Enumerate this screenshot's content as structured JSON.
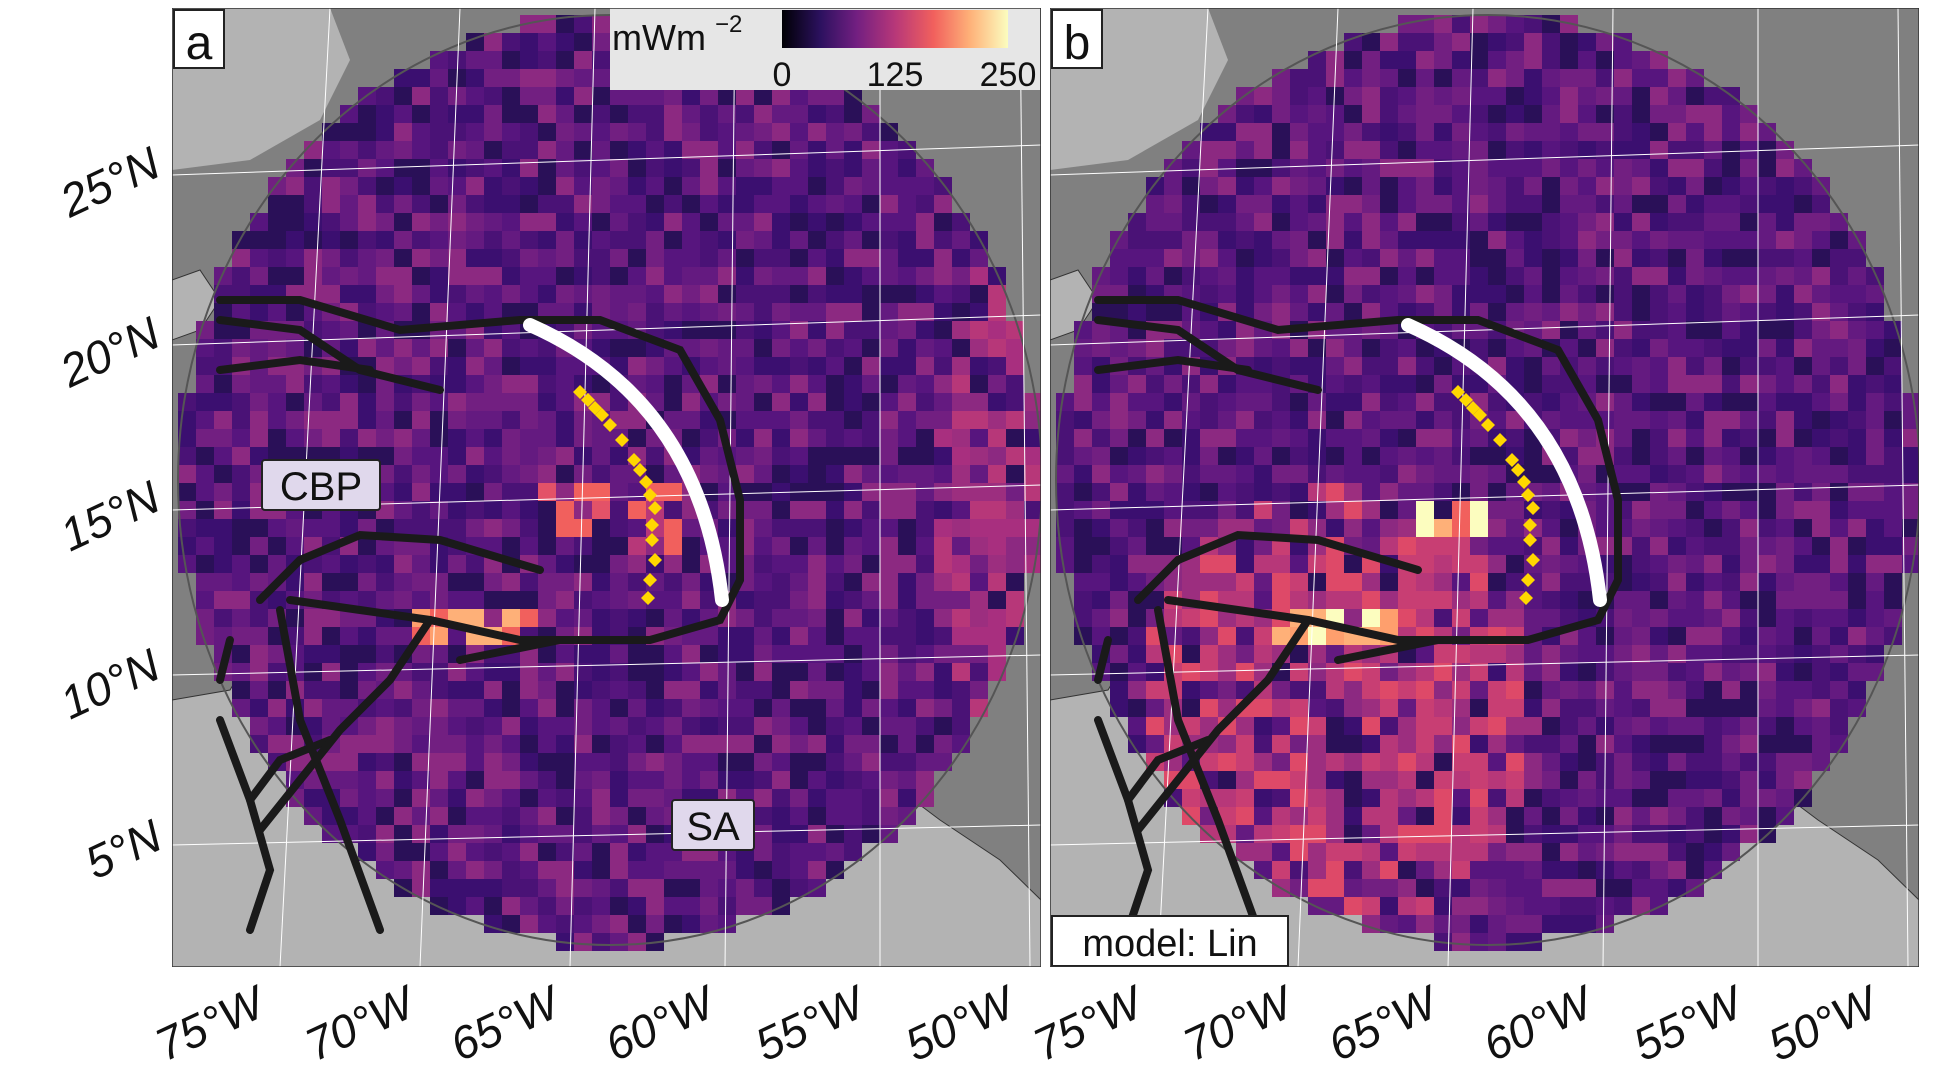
{
  "latitude_labels": [
    "25°N",
    "20°N",
    "15°N",
    "10°N",
    "5°N"
  ],
  "longitude_labels": [
    "75°W",
    "70°W",
    "65°W",
    "60°W",
    "55°W",
    "50°W"
  ],
  "colorbar": {
    "unit": "mWm",
    "unit_exponent": "−2",
    "ticks": [
      "0",
      "125",
      "250"
    ],
    "palette": [
      "#000004",
      "#2c115f",
      "#721f81",
      "#b73779",
      "#f1605d",
      "#feb078",
      "#fcfdbf"
    ]
  },
  "panels": [
    {
      "letter": "a",
      "region_labels": [
        "CBP",
        "SA"
      ]
    },
    {
      "letter": "b",
      "model_label": "model: Lin"
    }
  ],
  "colors": {
    "land": "#b3b3b3",
    "ocean": "#808080",
    "grid": "#ffffff",
    "trench": "#ffffff",
    "volcanoes": "#ffd700",
    "faults": "#1a1a1a",
    "label_box_fill": "#e0d8ec"
  }
}
